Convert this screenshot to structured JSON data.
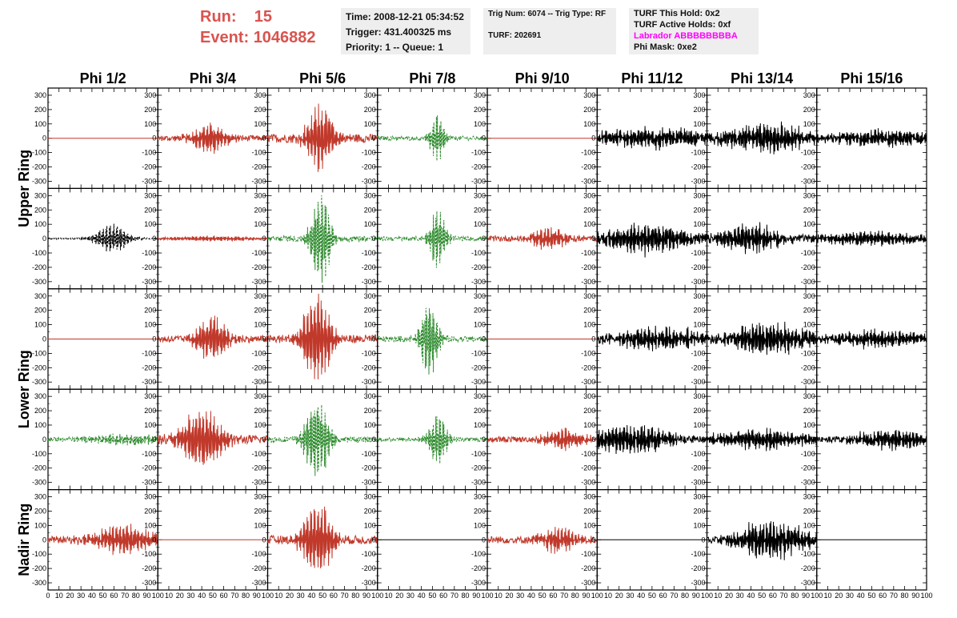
{
  "header": {
    "run_label": "Run:",
    "run_value": "15",
    "event_label": "Event:",
    "event_value": "1046882",
    "time": "Time: 2008-12-21 05:34:52",
    "trigger": "Trigger: 431.400325 ms",
    "priority": "Priority: 1 -- Queue: 1",
    "trig_num": "Trig Num: 6074 -- Trig Type: RF",
    "turf": "TURF: 202691",
    "turf_hold": "TURF This Hold: 0x2",
    "turf_active": "TURF Active Holds: 0xf",
    "labrador": "Labrador ABBBBBBBBA",
    "phi_mask": "Phi Mask: 0xe2"
  },
  "colors": {
    "header_red": "#d9534f",
    "magenta": "#ff00ff",
    "trace_red": "#c0392b",
    "trace_green": "#2e8b2e",
    "trace_black": "#000000",
    "info_bg": "#eeeeee"
  },
  "chart_data": {
    "type": "line",
    "columns": [
      "Phi 1/2",
      "Phi 3/4",
      "Phi 5/6",
      "Phi 7/8",
      "Phi 9/10",
      "Phi 11/12",
      "Phi 13/14",
      "Phi 15/16"
    ],
    "rows": [
      "Upper Ring",
      "Upper Ring",
      "Lower Ring",
      "Lower Ring",
      "Nadir Ring"
    ],
    "row_labels": [
      {
        "label": "Upper Ring",
        "spans_rows": [
          0,
          1
        ]
      },
      {
        "label": "Lower Ring",
        "spans_rows": [
          2,
          3
        ]
      },
      {
        "label": "Nadir Ring",
        "spans_rows": [
          4
        ]
      }
    ],
    "xlim": [
      0,
      100
    ],
    "ylim": [
      -350,
      350
    ],
    "x_ticks": [
      0,
      10,
      20,
      30,
      40,
      50,
      60,
      70,
      80,
      90,
      100
    ],
    "x_tick_labels": [
      "0",
      "10",
      "20",
      "30",
      "40",
      "50",
      "60",
      "70",
      "80",
      "90",
      "100"
    ],
    "y_ticks": [
      -300,
      -200,
      -100,
      0,
      100,
      200,
      300
    ],
    "y_tick_labels": [
      "-300",
      "-200",
      "-100",
      "0",
      "100",
      "200",
      "300"
    ],
    "panels": [
      [
        {
          "color": "red",
          "amp": 0,
          "center": 50,
          "width": 20,
          "noise": 0
        },
        {
          "color": "red",
          "amp": 110,
          "center": 48,
          "width": 18,
          "noise": 20
        },
        {
          "color": "red",
          "amp": 260,
          "center": 48,
          "width": 14,
          "noise": 30
        },
        {
          "color": "green",
          "amp": 200,
          "center": 55,
          "width": 7,
          "noise": 15,
          "dashed": true
        },
        {
          "color": "red",
          "amp": 0,
          "center": 50,
          "width": 20,
          "noise": 0
        },
        {
          "color": "black",
          "amp": 70,
          "center": 50,
          "width": 60,
          "noise": 25
        },
        {
          "color": "black",
          "amp": 110,
          "center": 55,
          "width": 40,
          "noise": 30
        },
        {
          "color": "black",
          "amp": 60,
          "center": 60,
          "width": 50,
          "noise": 20
        }
      ],
      [
        {
          "color": "black",
          "amp": 110,
          "center": 58,
          "width": 16,
          "noise": 5,
          "dashed": true
        },
        {
          "color": "red",
          "amp": 20,
          "center": 50,
          "width": 40,
          "noise": 5
        },
        {
          "color": "green",
          "amp": 330,
          "center": 48,
          "width": 10,
          "noise": 20,
          "dashed": true
        },
        {
          "color": "green",
          "amp": 220,
          "center": 55,
          "width": 8,
          "noise": 15,
          "dashed": true
        },
        {
          "color": "red",
          "amp": 80,
          "center": 55,
          "width": 18,
          "noise": 20
        },
        {
          "color": "black",
          "amp": 110,
          "center": 45,
          "width": 40,
          "noise": 25
        },
        {
          "color": "black",
          "amp": 110,
          "center": 40,
          "width": 30,
          "noise": 25
        },
        {
          "color": "black",
          "amp": 50,
          "center": 50,
          "width": 60,
          "noise": 15
        }
      ],
      [
        {
          "color": "red",
          "amp": 0,
          "center": 50,
          "width": 20,
          "noise": 0
        },
        {
          "color": "red",
          "amp": 180,
          "center": 50,
          "width": 16,
          "noise": 25
        },
        {
          "color": "red",
          "amp": 340,
          "center": 45,
          "width": 14,
          "noise": 30
        },
        {
          "color": "green",
          "amp": 280,
          "center": 47,
          "width": 9,
          "noise": 20,
          "dashed": true
        },
        {
          "color": "red",
          "amp": 0,
          "center": 50,
          "width": 20,
          "noise": 0
        },
        {
          "color": "black",
          "amp": 80,
          "center": 60,
          "width": 50,
          "noise": 25
        },
        {
          "color": "black",
          "amp": 120,
          "center": 55,
          "width": 40,
          "noise": 30
        },
        {
          "color": "black",
          "amp": 60,
          "center": 55,
          "width": 50,
          "noise": 20
        }
      ],
      [
        {
          "color": "green",
          "amp": 40,
          "center": 70,
          "width": 40,
          "noise": 15,
          "dashed": true
        },
        {
          "color": "red",
          "amp": 230,
          "center": 40,
          "width": 20,
          "noise": 30
        },
        {
          "color": "green",
          "amp": 320,
          "center": 45,
          "width": 12,
          "noise": 20,
          "dashed": true
        },
        {
          "color": "green",
          "amp": 200,
          "center": 55,
          "width": 9,
          "noise": 15,
          "dashed": true
        },
        {
          "color": "red",
          "amp": 80,
          "center": 70,
          "width": 20,
          "noise": 20
        },
        {
          "color": "black",
          "amp": 110,
          "center": 30,
          "width": 40,
          "noise": 25
        },
        {
          "color": "black",
          "amp": 70,
          "center": 50,
          "width": 50,
          "noise": 20
        },
        {
          "color": "black",
          "amp": 70,
          "center": 70,
          "width": 40,
          "noise": 20
        }
      ],
      [
        {
          "color": "red",
          "amp": 110,
          "center": 70,
          "width": 30,
          "noise": 25
        },
        {
          "color": "red",
          "amp": 0,
          "center": 50,
          "width": 20,
          "noise": 0
        },
        {
          "color": "red",
          "amp": 300,
          "center": 45,
          "width": 14,
          "noise": 30
        },
        {
          "color": "black",
          "amp": 0,
          "center": 50,
          "width": 20,
          "noise": 0
        },
        {
          "color": "red",
          "amp": 100,
          "center": 65,
          "width": 18,
          "noise": 25
        },
        {
          "color": "black",
          "amp": 0,
          "center": 50,
          "width": 20,
          "noise": 0
        },
        {
          "color": "black",
          "amp": 140,
          "center": 60,
          "width": 35,
          "noise": 30
        },
        {
          "color": "black",
          "amp": 0,
          "center": 50,
          "width": 20,
          "noise": 0
        }
      ]
    ]
  }
}
